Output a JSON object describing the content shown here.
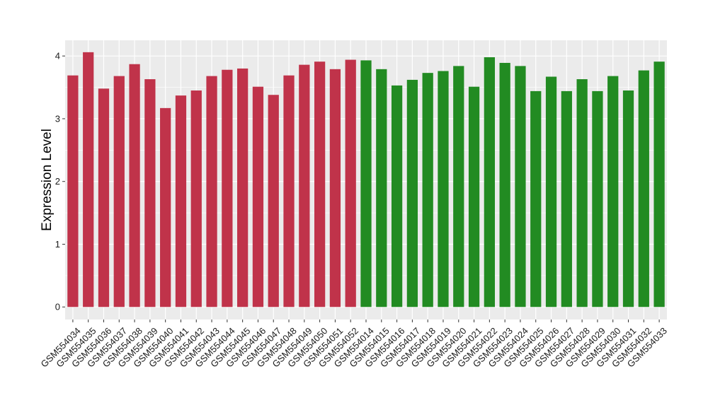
{
  "chart_data": {
    "type": "bar",
    "title": "",
    "xlabel": "",
    "ylabel": "Expression Level",
    "ylim": [
      -0.2,
      4.25
    ],
    "yticks": [
      0,
      1,
      2,
      3,
      4
    ],
    "grid": true,
    "categories": [
      "GSM554034",
      "GSM554035",
      "GSM554036",
      "GSM554037",
      "GSM554038",
      "GSM554039",
      "GSM554040",
      "GSM554041",
      "GSM554042",
      "GSM554043",
      "GSM554044",
      "GSM554045",
      "GSM554046",
      "GSM554047",
      "GSM554048",
      "GSM554049",
      "GSM554050",
      "GSM554051",
      "GSM554052",
      "GSM554014",
      "GSM554015",
      "GSM554016",
      "GSM554017",
      "GSM554018",
      "GSM554019",
      "GSM554020",
      "GSM554021",
      "GSM554022",
      "GSM554023",
      "GSM554024",
      "GSM554025",
      "GSM554026",
      "GSM554027",
      "GSM554028",
      "GSM554029",
      "GSM554030",
      "GSM554031",
      "GSM554032",
      "GSM554033"
    ],
    "values": [
      3.69,
      4.06,
      3.48,
      3.68,
      3.87,
      3.63,
      3.17,
      3.37,
      3.45,
      3.68,
      3.78,
      3.8,
      3.51,
      3.38,
      3.69,
      3.86,
      3.91,
      3.79,
      3.94,
      3.93,
      3.79,
      3.53,
      3.62,
      3.73,
      3.76,
      3.84,
      3.51,
      3.98,
      3.89,
      3.84,
      3.44,
      3.67,
      3.44,
      3.63,
      3.44,
      3.68,
      3.45,
      3.77,
      3.91
    ],
    "group_sizes": [
      19,
      20
    ],
    "colors": {
      "group1": "#c0334a",
      "group2": "#228b22",
      "panel_bg": "#ebebeb",
      "grid": "#ffffff"
    }
  }
}
